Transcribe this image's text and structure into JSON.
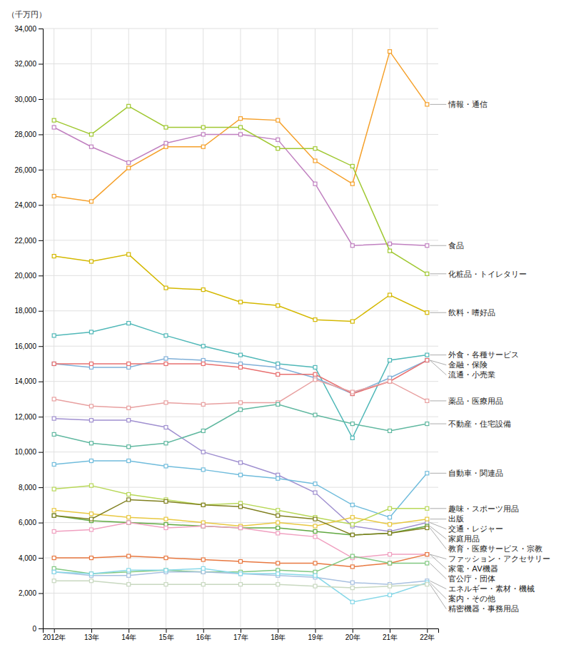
{
  "chart_data": {
    "type": "line",
    "ylabel": "（千万円）",
    "categories": [
      "2012年",
      "13年",
      "14年",
      "15年",
      "16年",
      "17年",
      "18年",
      "19年",
      "20年",
      "21年",
      "22年"
    ],
    "series": [
      {
        "name": "情報・通信",
        "color": "#F5A02A",
        "values": [
          24500,
          24200,
          26100,
          27300,
          27300,
          28900,
          28800,
          26500,
          25200,
          32700,
          29700
        ]
      },
      {
        "name": "食品",
        "color": "#C080C0",
        "values": [
          28400,
          27300,
          26400,
          27500,
          28000,
          28000,
          27700,
          25200,
          21700,
          21800,
          21700
        ]
      },
      {
        "name": "化粧品・トイレタリー",
        "color": "#A0C832",
        "values": [
          28800,
          28000,
          29600,
          28400,
          28400,
          28400,
          27200,
          27200,
          26200,
          21400,
          20100
        ]
      },
      {
        "name": "飲料・嗜好品",
        "color": "#D4B800",
        "values": [
          21100,
          20800,
          21200,
          19300,
          19200,
          18500,
          18300,
          17500,
          17400,
          18900,
          17900
        ]
      },
      {
        "name": "外食・各種サービス",
        "color": "#50B8B8",
        "values": [
          16600,
          16800,
          17300,
          16600,
          16000,
          15500,
          15000,
          14800,
          10800,
          15200,
          15500
        ]
      },
      {
        "name": "金融・保険",
        "color": "#80B0D8",
        "values": [
          15000,
          14800,
          14800,
          15300,
          15200,
          15000,
          14800,
          14200,
          13300,
          14200,
          15200
        ]
      },
      {
        "name": "流通・小売業",
        "color": "#E87070",
        "values": [
          15000,
          15000,
          15000,
          15000,
          15000,
          14800,
          14400,
          14400,
          13300,
          14000,
          15200
        ]
      },
      {
        "name": "薬品・医療用品",
        "color": "#E8A0A0",
        "values": [
          13000,
          12600,
          12500,
          12800,
          12700,
          12800,
          12800,
          14100,
          13400,
          14000,
          12900
        ]
      },
      {
        "name": "交通・レジャー",
        "color": "#A090D0",
        "values": [
          11900,
          11800,
          11800,
          11400,
          10000,
          9400,
          8700,
          7700,
          5800,
          5500,
          6000
        ]
      },
      {
        "name": "不動産・住宅設備",
        "color": "#60B8A0",
        "values": [
          11000,
          10500,
          10300,
          10500,
          11200,
          12400,
          12700,
          12100,
          11600,
          11200,
          11600
        ]
      },
      {
        "name": "自動車・関連品",
        "color": "#70BCDC",
        "values": [
          9300,
          9500,
          9500,
          9200,
          9000,
          8700,
          8500,
          8200,
          7000,
          6300,
          8800
        ]
      },
      {
        "name": "趣味・スポーツ用品",
        "color": "#B8D858",
        "values": [
          7900,
          8100,
          7600,
          7300,
          7000,
          7100,
          6700,
          6300,
          5900,
          6800,
          6800
        ]
      },
      {
        "name": "出版",
        "color": "#E8C840",
        "values": [
          6700,
          6500,
          6300,
          6200,
          6000,
          5800,
          6000,
          5800,
          6300,
          5900,
          6200
        ]
      },
      {
        "name": "家庭用品",
        "color": "#60A840",
        "values": [
          6400,
          6100,
          6000,
          5900,
          5800,
          5700,
          5700,
          5500,
          5300,
          5400,
          5800
        ]
      },
      {
        "name": "教育・医療サービス・宗教",
        "color": "#808020",
        "values": [
          6400,
          6200,
          7300,
          7200,
          7000,
          6900,
          6400,
          6200,
          5300,
          5400,
          5700
        ]
      },
      {
        "name": "ファッション・アクセサリー",
        "color": "#F0A0C0",
        "values": [
          5500,
          5600,
          6000,
          5700,
          5800,
          5700,
          5400,
          5200,
          4000,
          4200,
          4200
        ]
      },
      {
        "name": "家電・AV機器",
        "color": "#E87840",
        "values": [
          4000,
          4000,
          4100,
          4000,
          3900,
          3800,
          3700,
          3700,
          3500,
          3700,
          4200
        ]
      },
      {
        "name": "官公庁・団体",
        "color": "#80C880",
        "values": [
          3400,
          3100,
          3200,
          3300,
          3200,
          3200,
          3300,
          3200,
          4100,
          3700,
          3700
        ]
      },
      {
        "name": "エネルギー・素材・機械",
        "color": "#A8C0E0",
        "values": [
          3200,
          3000,
          3000,
          3200,
          3200,
          3100,
          3000,
          2900,
          2600,
          2500,
          2700
        ]
      },
      {
        "name": "案内・その他",
        "color": "#88D8E8",
        "values": [
          3200,
          3100,
          3300,
          3300,
          3400,
          3100,
          3100,
          3000,
          1500,
          1900,
          2600
        ]
      },
      {
        "name": "精密機器・事務用品",
        "color": "#C8D8C0",
        "values": [
          2700,
          2700,
          2500,
          2500,
          2500,
          2500,
          2500,
          2400,
          2300,
          2400,
          2500
        ]
      }
    ],
    "ylim": [
      0,
      34000
    ],
    "yticks": [
      0,
      {
        "value": 2000,
        "label": "2,000"
      },
      {
        "value": 4000,
        "label": "4,000"
      },
      {
        "value": 6000,
        "label": "6,000"
      },
      {
        "value": 8000,
        "label": "8,000"
      },
      {
        "value": 10000,
        "label": "10,000"
      },
      {
        "value": 12000,
        "label": "12,000"
      },
      {
        "value": 14000,
        "label": "14,000"
      },
      {
        "value": 16000,
        "label": "16,000"
      },
      {
        "value": 18000,
        "label": "18,000"
      },
      {
        "value": 20000,
        "label": "20,000"
      },
      {
        "value": 22000,
        "label": "22,000"
      },
      {
        "value": 24000,
        "label": "24,000"
      },
      {
        "value": 26000,
        "label": "26,000"
      },
      {
        "value": 28000,
        "label": "28,000"
      },
      {
        "value": 30000,
        "label": "30,000"
      },
      {
        "value": 32000,
        "label": "32,000"
      },
      {
        "value": 34000,
        "label": "34,000"
      }
    ],
    "grid": true,
    "marker": "square"
  }
}
